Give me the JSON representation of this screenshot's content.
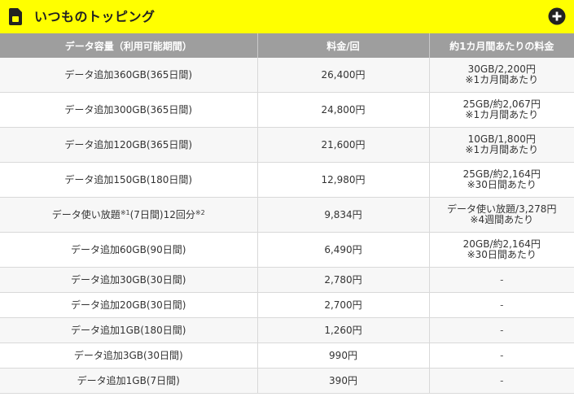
{
  "header": {
    "title": "いつものトッピング",
    "sim_icon": "sim-card-icon",
    "expand_icon": "plus-circle-icon"
  },
  "colors": {
    "header_bg": "#ffff00",
    "table_header_bg": "#9e9e9e",
    "row_alt_bg": "#f7f7f7"
  },
  "table": {
    "columns": [
      "データ容量（利用可能期間）",
      "料金/回",
      "約1カ月間あたりの料金"
    ],
    "rows": [
      {
        "name": "データ追加360GB(365日間)",
        "price": "26,400円",
        "monthly_line1": "30GB/2,200円",
        "monthly_line2": "※1カ月間あたり"
      },
      {
        "name": "データ追加300GB(365日間)",
        "price": "24,800円",
        "monthly_line1": "25GB/約2,067円",
        "monthly_line2": "※1カ月間あたり"
      },
      {
        "name": "データ追加120GB(365日間)",
        "price": "21,600円",
        "monthly_line1": "10GB/1,800円",
        "monthly_line2": "※1カ月間あたり"
      },
      {
        "name": "データ追加150GB(180日間)",
        "price": "12,980円",
        "monthly_line1": "25GB/約2,164円",
        "monthly_line2": "※30日間あたり"
      },
      {
        "name_part1": "データ使い放題",
        "name_sup1": "※1",
        "name_part2": "(7日間)12回分",
        "name_sup2": "※2",
        "price": "9,834円",
        "monthly_line1": "データ使い放題/3,278円",
        "monthly_line2": "※4週間あたり"
      },
      {
        "name": "データ追加60GB(90日間)",
        "price": "6,490円",
        "monthly_line1": "20GB/約2,164円",
        "monthly_line2": "※30日間あたり"
      },
      {
        "name": "データ追加30GB(30日間)",
        "price": "2,780円",
        "monthly": "-"
      },
      {
        "name": "データ追加20GB(30日間)",
        "price": "2,700円",
        "monthly": "-"
      },
      {
        "name": "データ追加1GB(180日間)",
        "price": "1,260円",
        "monthly": "-"
      },
      {
        "name": "データ追加3GB(30日間)",
        "price": "990円",
        "monthly": "-"
      },
      {
        "name": "データ追加1GB(7日間)",
        "price": "390円",
        "monthly": "-"
      }
    ]
  }
}
